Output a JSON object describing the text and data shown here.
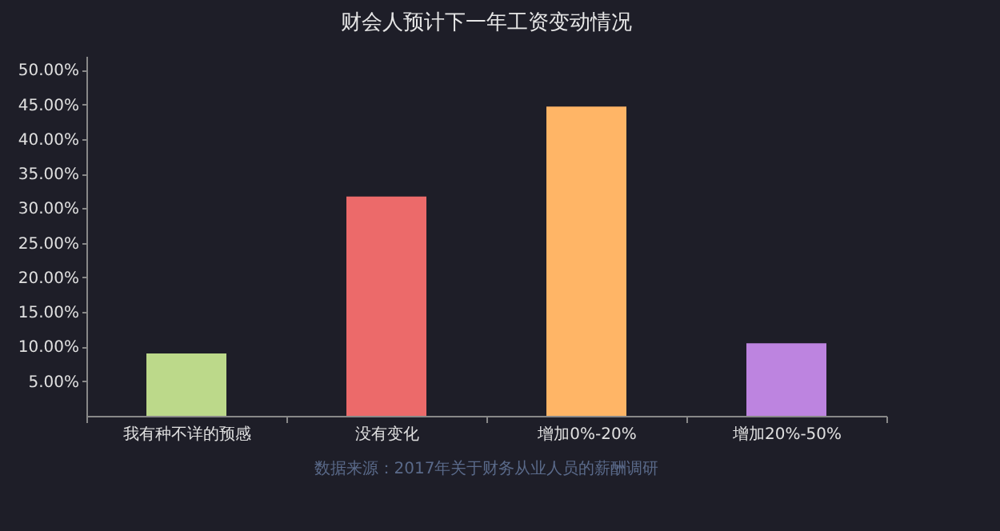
{
  "chart_data": {
    "type": "bar",
    "title": "财会人预计下一年工资变动情况",
    "categories": [
      "我有种不详的预感",
      "没有变化",
      "增加0%-20%",
      "增加20%-50%"
    ],
    "values": [
      9.0,
      31.7,
      44.7,
      10.5
    ],
    "colors": [
      "#bcd98a",
      "#ec6a6a",
      "#ffb566",
      "#bd84e0"
    ],
    "ylim": [
      0,
      52
    ],
    "yticks": [
      {
        "value": 5,
        "label": "5.00%"
      },
      {
        "value": 10,
        "label": "10.00%"
      },
      {
        "value": 15,
        "label": "15.00%"
      },
      {
        "value": 20,
        "label": "20.00%"
      },
      {
        "value": 25,
        "label": "25.00%"
      },
      {
        "value": 30,
        "label": "30.00%"
      },
      {
        "value": 35,
        "label": "35.00%"
      },
      {
        "value": 40,
        "label": "40.00%"
      },
      {
        "value": 45,
        "label": "45.00%"
      },
      {
        "value": 50,
        "label": "50.00%"
      }
    ],
    "grid": false,
    "annotations": [
      "数据来源：2017年关于财务从业人员的薪酬调研"
    ]
  }
}
